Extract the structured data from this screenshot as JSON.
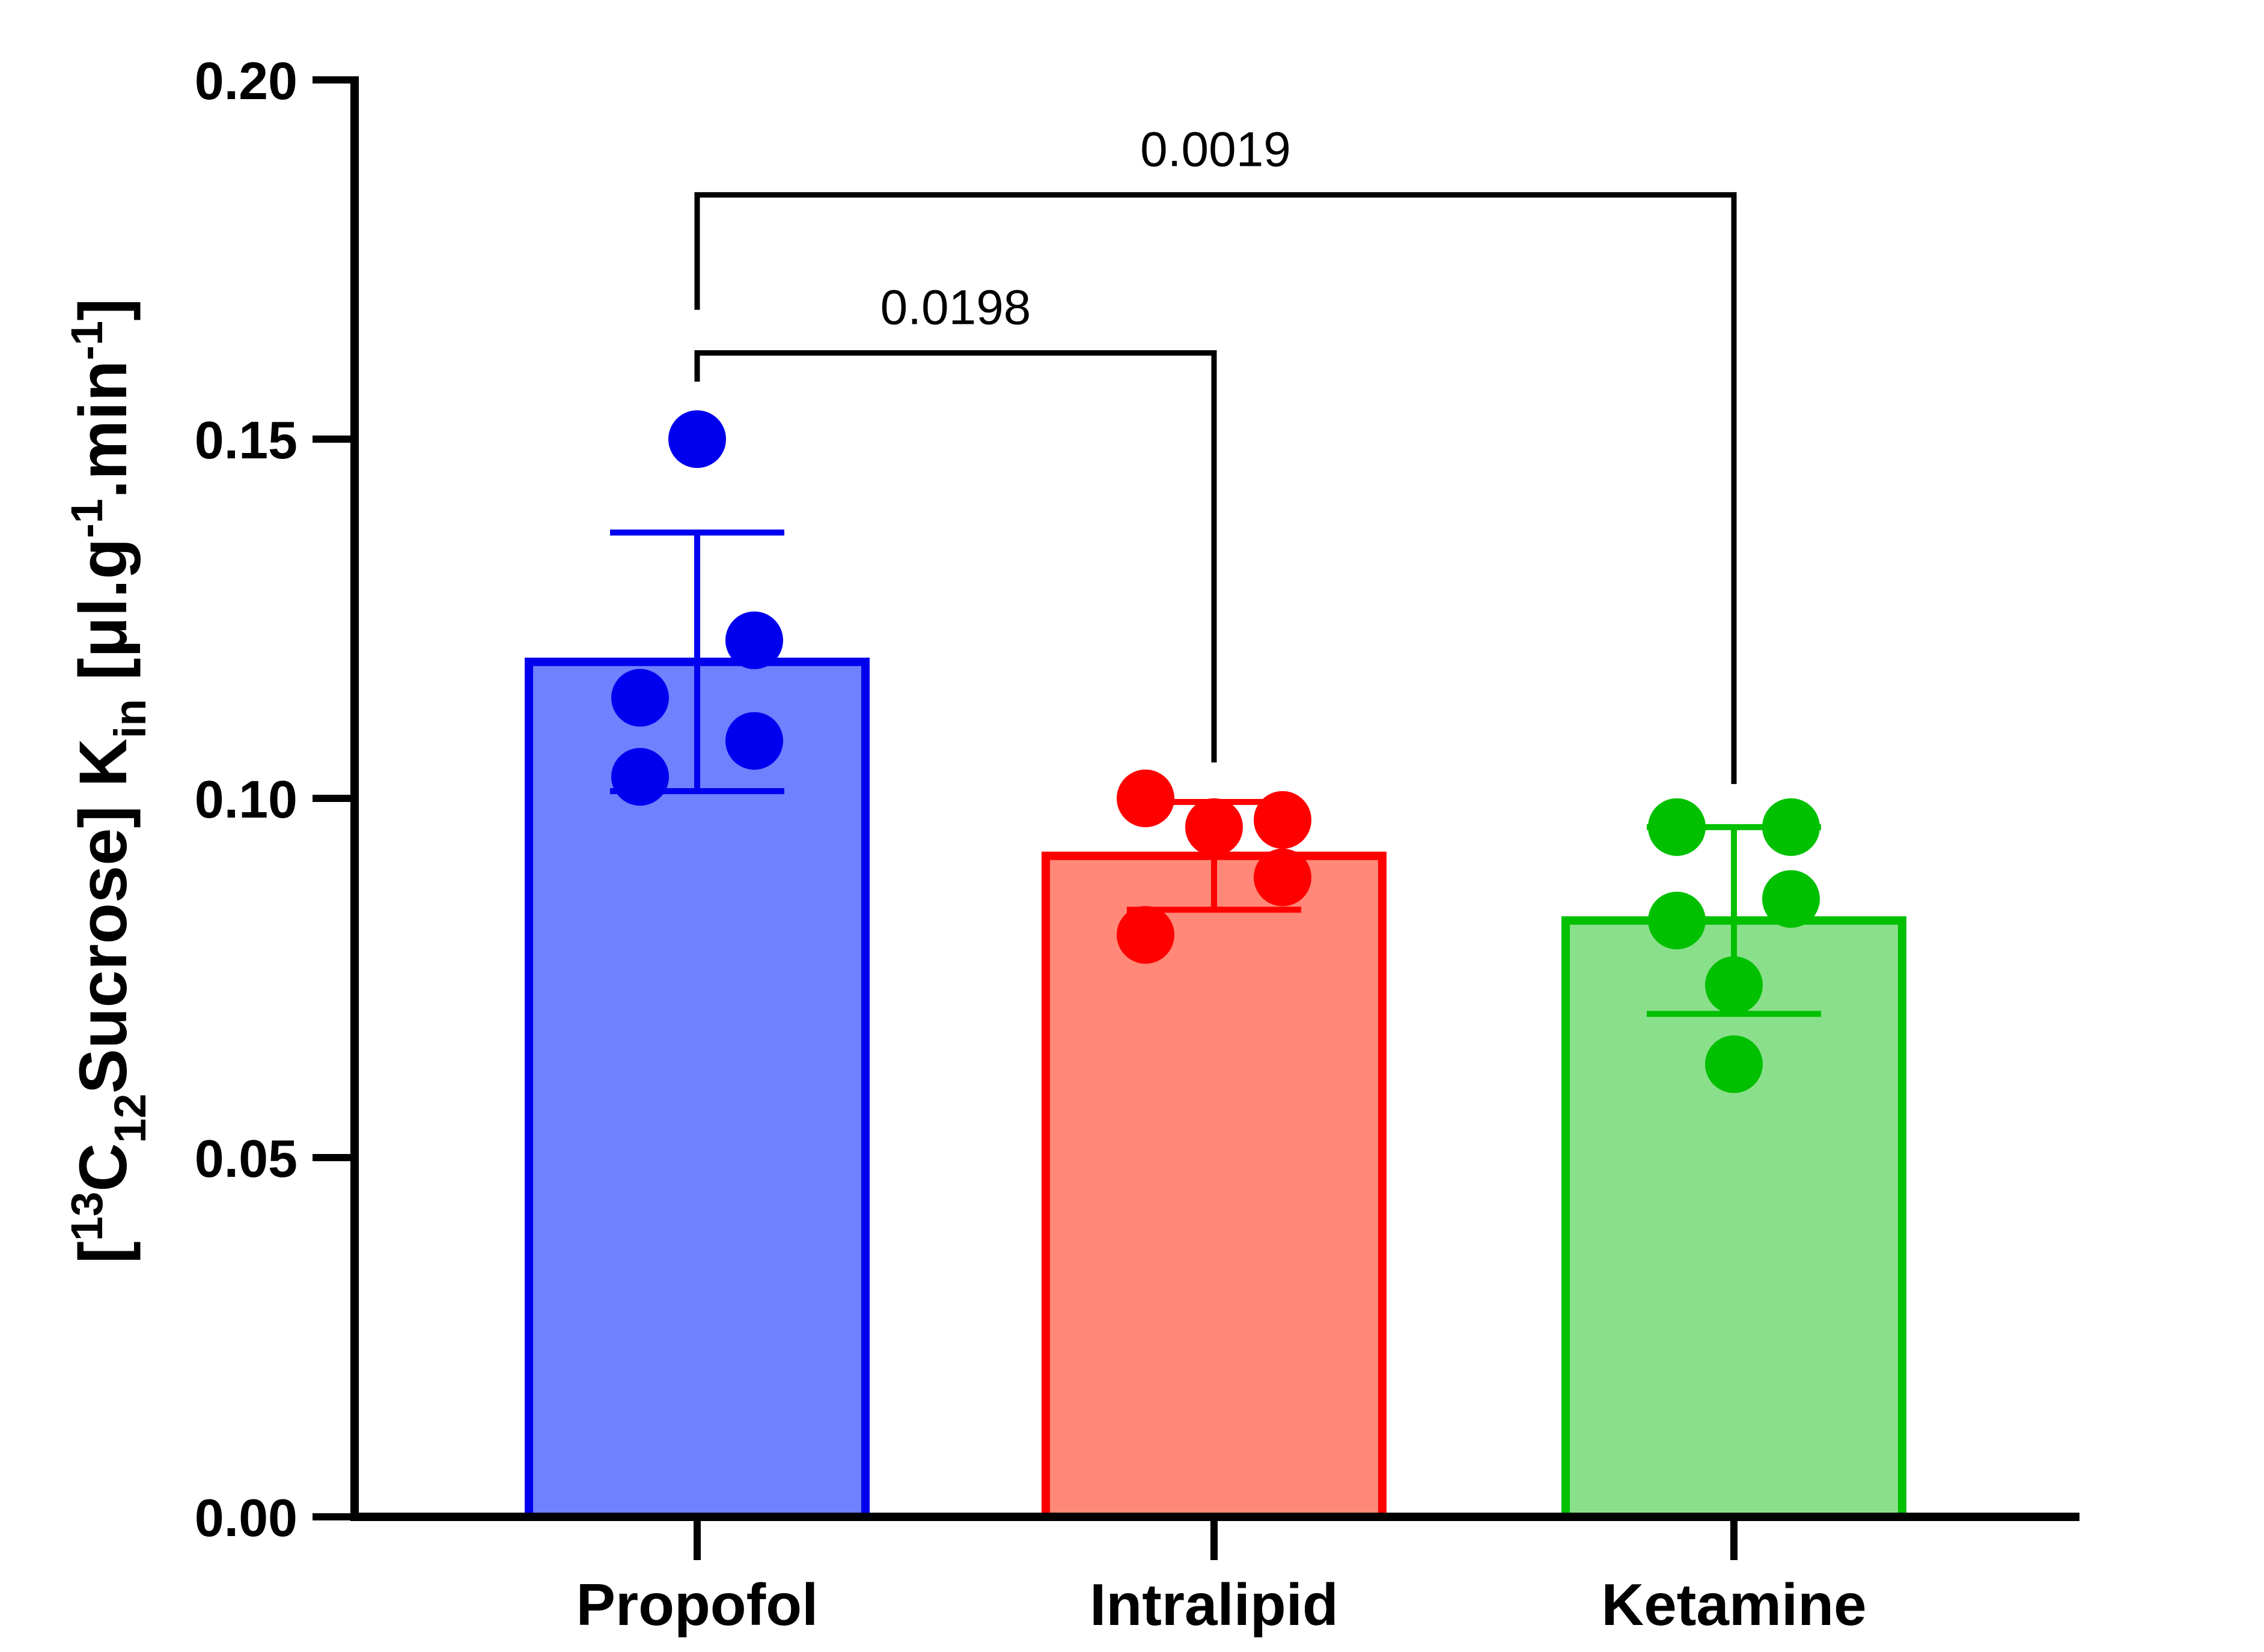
{
  "chart_data": {
    "type": "bar",
    "categories": [
      "Propofol",
      "Intralipid",
      "Ketamine"
    ],
    "ylabel": {
      "open": "[",
      "sup1": "13",
      "c": "C",
      "sub1": "12",
      "sucrose": "Sucrose] K",
      "sub2": "in",
      "unit_open": " [",
      "mu": "μ",
      "unit_mid": "l.g",
      "sup2": "-1",
      "unit_min": ".min",
      "sup3": "-1",
      "close": "]"
    },
    "ylim": [
      0,
      0.2
    ],
    "yticks": [
      "0.00",
      "0.05",
      "0.10",
      "0.15",
      "0.20"
    ],
    "ytick_values": [
      0,
      0.05,
      0.1,
      0.15,
      0.2
    ],
    "bars": [
      {
        "category": "Propofol",
        "mean": 0.119,
        "sd": 0.018,
        "fill": "#7080ff",
        "stroke": "#0000ee",
        "points": [
          {
            "x": 0,
            "y": 0.15
          },
          {
            "x": 1,
            "y": 0.122
          },
          {
            "x": -1,
            "y": 0.114
          },
          {
            "x": 1,
            "y": 0.108
          },
          {
            "x": -1,
            "y": 0.103
          }
        ]
      },
      {
        "category": "Intralipid",
        "mean": 0.092,
        "sd": 0.0075,
        "fill": "#ff8878",
        "stroke": "#ff0000",
        "points": [
          {
            "x": -1.2,
            "y": 0.1
          },
          {
            "x": 1.2,
            "y": 0.097
          },
          {
            "x": 0,
            "y": 0.096
          },
          {
            "x": 1.2,
            "y": 0.089
          },
          {
            "x": -1.2,
            "y": 0.081
          }
        ]
      },
      {
        "category": "Ketamine",
        "mean": 0.083,
        "sd": 0.013,
        "fill": "#8ae08a",
        "stroke": "#00c000",
        "points": [
          {
            "x": -1,
            "y": 0.096
          },
          {
            "x": 1,
            "y": 0.096
          },
          {
            "x": 1,
            "y": 0.086
          },
          {
            "x": -1,
            "y": 0.083
          },
          {
            "x": 0,
            "y": 0.074
          },
          {
            "x": 0,
            "y": 0.063
          }
        ]
      }
    ],
    "comparisons": [
      {
        "from": 0,
        "to": 1,
        "label": "0.0198",
        "y": 0.162,
        "left_end": 0.158,
        "right_end": 0.105
      },
      {
        "from": 0,
        "to": 2,
        "label": "0.0019",
        "y": 0.184,
        "left_end": 0.168,
        "right_end": 0.102
      }
    ]
  }
}
